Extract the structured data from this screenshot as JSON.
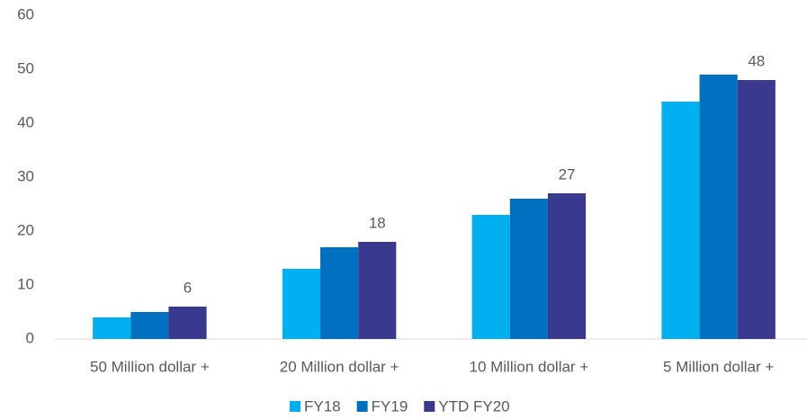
{
  "chart_data": {
    "type": "bar",
    "categories": [
      "50 Million dollar +",
      "20 Million dollar +",
      "10 Million dollar +",
      "5 Million dollar +"
    ],
    "series": [
      {
        "name": "FY18",
        "color": "#00b0f0",
        "values": [
          4,
          13,
          23,
          44
        ]
      },
      {
        "name": "FY19",
        "color": "#0070c0",
        "values": [
          5,
          17,
          26,
          49
        ]
      },
      {
        "name": "YTD FY20",
        "color": "#393a8f",
        "values": [
          6,
          18,
          27,
          48
        ],
        "data_labels": true
      }
    ],
    "ylim": [
      0,
      60
    ],
    "yticks": [
      0,
      10,
      20,
      30,
      40,
      50,
      60
    ],
    "grid": false,
    "legend": "bottom"
  }
}
